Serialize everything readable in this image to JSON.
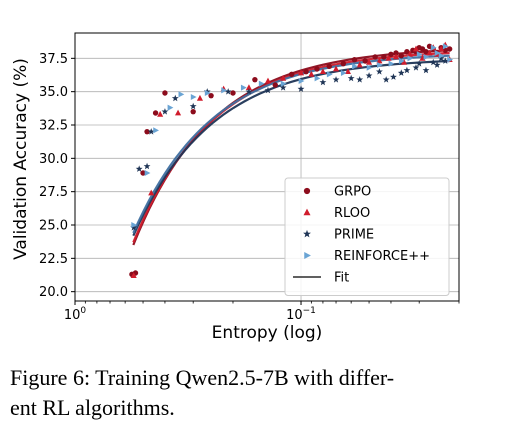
{
  "caption": {
    "line1": "Figure 6: Training Qwen2.5-7B with differ-",
    "line2": "ent RL algorithms."
  },
  "chart_data": {
    "type": "scatter",
    "xlabel": "Entropy (log)",
    "ylabel": "Validation Accuracy (%)",
    "x_scale": "log-reversed",
    "xlim": [
      1.0,
      0.02
    ],
    "ylim": [
      19.3,
      39.4
    ],
    "x_ticks": [
      {
        "value": 1.0,
        "base": "10",
        "exp": "0"
      },
      {
        "value": 0.1,
        "base": "10",
        "exp": "−1"
      }
    ],
    "y_ticks": [
      "20.0",
      "22.5",
      "25.0",
      "27.5",
      "30.0",
      "32.5",
      "35.0",
      "37.5"
    ],
    "grid": true,
    "legend_position": "lower-right",
    "series": [
      {
        "name": "GRPO",
        "marker": "circle",
        "color": "#8c0c1c",
        "fit_color": "#8c0c1c",
        "x": [
          0.56,
          0.54,
          0.5,
          0.48,
          0.44,
          0.4,
          0.3,
          0.25,
          0.2,
          0.16,
          0.13,
          0.11,
          0.095,
          0.085,
          0.075,
          0.065,
          0.058,
          0.052,
          0.047,
          0.043,
          0.04,
          0.038,
          0.036,
          0.034,
          0.032,
          0.031,
          0.03,
          0.029,
          0.028,
          0.027,
          0.026,
          0.025,
          0.024,
          0.023,
          0.022
        ],
        "y": [
          21.3,
          21.4,
          28.9,
          32.0,
          33.4,
          34.9,
          33.5,
          34.7,
          34.9,
          35.9,
          35.5,
          36.3,
          36.5,
          36.7,
          36.9,
          37.1,
          37.4,
          37.3,
          37.6,
          37.6,
          37.8,
          37.9,
          37.7,
          38.0,
          38.1,
          38.0,
          38.3,
          38.2,
          38.0,
          38.4,
          38.2,
          37.9,
          38.3,
          38.1,
          38.2
        ],
        "fit": {
          "x0": 0.552,
          "x1": 0.022,
          "y0": 23.5,
          "y1": 38.1
        }
      },
      {
        "name": "RLOO",
        "marker": "triangle",
        "color": "#d01c2c",
        "fit_color": "#d01c2c",
        "x": [
          0.55,
          0.46,
          0.42,
          0.35,
          0.28,
          0.22,
          0.17,
          0.14,
          0.12,
          0.1,
          0.09,
          0.08,
          0.07,
          0.062,
          0.055,
          0.05,
          0.045,
          0.041,
          0.038,
          0.035,
          0.033,
          0.031,
          0.029,
          0.027,
          0.026,
          0.025,
          0.024,
          0.023,
          0.022
        ],
        "y": [
          21.2,
          27.4,
          33.3,
          33.4,
          34.5,
          35.2,
          35.3,
          35.8,
          36.0,
          36.4,
          36.3,
          36.5,
          36.7,
          36.5,
          37.0,
          37.2,
          37.3,
          37.5,
          37.6,
          37.2,
          37.8,
          38.2,
          37.5,
          37.9,
          38.3,
          37.8,
          38.2,
          38.5,
          37.4
        ],
        "fit": {
          "x0": 0.552,
          "x1": 0.022,
          "y0": 23.7,
          "y1": 37.9
        }
      },
      {
        "name": "PRIME",
        "marker": "star",
        "color": "#1f3556",
        "fit_color": "#1f3556",
        "x": [
          0.55,
          0.52,
          0.48,
          0.46,
          0.4,
          0.36,
          0.3,
          0.26,
          0.21,
          0.17,
          0.14,
          0.12,
          0.1,
          0.08,
          0.07,
          0.06,
          0.055,
          0.05,
          0.045,
          0.042,
          0.039,
          0.036,
          0.034,
          0.031,
          0.03,
          0.028,
          0.026,
          0.025,
          0.024,
          0.023
        ],
        "y": [
          24.8,
          29.2,
          29.4,
          32.0,
          33.5,
          34.5,
          33.9,
          35.0,
          35.0,
          35.0,
          35.1,
          35.3,
          35.2,
          35.7,
          35.9,
          36.0,
          35.9,
          36.2,
          36.5,
          35.9,
          36.1,
          36.4,
          36.6,
          36.8,
          37.1,
          36.6,
          37.2,
          37.0,
          37.5,
          37.3
        ],
        "fit": {
          "x0": 0.552,
          "x1": 0.022,
          "y0": 24.2,
          "y1": 37.3
        }
      },
      {
        "name": "REINFORCE++",
        "marker": "triangle-right",
        "color": "#6aa4d4",
        "fit_color": "#3f6fa0",
        "x": [
          0.55,
          0.48,
          0.44,
          0.38,
          0.34,
          0.3,
          0.26,
          0.22,
          0.18,
          0.15,
          0.12,
          0.1,
          0.085,
          0.075,
          0.065,
          0.058,
          0.05,
          0.045,
          0.04,
          0.036,
          0.033,
          0.03,
          0.028,
          0.026,
          0.025,
          0.024,
          0.023,
          0.022
        ],
        "y": [
          25.0,
          28.9,
          32.1,
          33.8,
          34.8,
          34.6,
          34.9,
          35.1,
          35.3,
          35.6,
          35.6,
          35.8,
          36.0,
          36.3,
          36.4,
          36.9,
          36.8,
          37.0,
          37.1,
          37.3,
          37.5,
          37.8,
          37.6,
          38.3,
          37.9,
          37.7,
          38.4,
          37.4
        ],
        "fit": {
          "x0": 0.552,
          "x1": 0.022,
          "y0": 24.4,
          "y1": 37.7
        }
      }
    ],
    "legend": [
      {
        "label": "GRPO",
        "marker": "circle",
        "color": "#8c0c1c"
      },
      {
        "label": "RLOO",
        "marker": "triangle",
        "color": "#d01c2c"
      },
      {
        "label": "PRIME",
        "marker": "star",
        "color": "#1f3556"
      },
      {
        "label": "REINFORCE++",
        "marker": "triangle-right",
        "color": "#6aa4d4"
      },
      {
        "label": "Fit",
        "marker": "line",
        "color": "#000000"
      }
    ]
  }
}
